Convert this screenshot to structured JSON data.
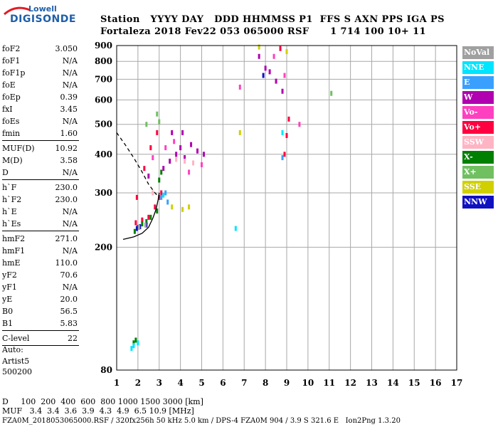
{
  "logo": {
    "top": "Lowell",
    "bottom": "DIGISONDE"
  },
  "header": {
    "line1": "Station   YYYY DAY   DDD HHMMSS P1  FFS S AXN PPS IGA PS",
    "line2": "Fortaleza 2018 Fev22 053 065000 RSF      1 714 100 10+ 11"
  },
  "params_group1": [
    {
      "name": "foF2",
      "value": "3.050"
    },
    {
      "name": "foF1",
      "value": "N/A"
    },
    {
      "name": "foF1p",
      "value": "N/A"
    },
    {
      "name": "foE",
      "value": "N/A"
    },
    {
      "name": "foEp",
      "value": "0.39"
    },
    {
      "name": "fxI",
      "value": "3.45"
    },
    {
      "name": "foEs",
      "value": "N/A"
    },
    {
      "name": "fmin",
      "value": "1.60"
    }
  ],
  "params_group2": [
    {
      "name": "MUF(D)",
      "value": "10.92"
    },
    {
      "name": "M(D)",
      "value": "3.58"
    },
    {
      "name": "D",
      "value": "N/A"
    }
  ],
  "params_group3": [
    {
      "name": "h`F",
      "value": "230.0"
    },
    {
      "name": "h`F2",
      "value": "230.0"
    },
    {
      "name": "h`E",
      "value": "N/A"
    },
    {
      "name": "h`Es",
      "value": "N/A"
    }
  ],
  "params_group4": [
    {
      "name": "hmF2",
      "value": "271.0"
    },
    {
      "name": "hmF1",
      "value": "N/A"
    },
    {
      "name": "hmE",
      "value": "110.0"
    },
    {
      "name": "yF2",
      "value": "70.6"
    },
    {
      "name": "yF1",
      "value": "N/A"
    },
    {
      "name": "yE",
      "value": "20.0"
    },
    {
      "name": "B0",
      "value": "56.5"
    },
    {
      "name": "B1",
      "value": "5.83"
    }
  ],
  "params_group5": [
    {
      "name": "C-level",
      "value": "22"
    }
  ],
  "auto": {
    "line1": "Auto:",
    "line2": "Artist5",
    "line3": "500200"
  },
  "footer": {
    "line1": "D     100  200  400  600  800 1000 1500 3000 [km]",
    "line2": "MUF   3.4  3.4  3.6  3.9  4.3  4.9  6.5 10.9 [MHz]",
    "line3": "FZA0M_2018053065000.RSF / 320fx256h 50 kHz 5.0 km / DPS-4 FZA0M 904 / 3.9 S 321.6 E   Ion2Png 1.3.20"
  },
  "legend": [
    {
      "label": "NoVal",
      "color": "#a0a0a0"
    },
    {
      "label": "NNE",
      "color": "#00e5ff"
    },
    {
      "label": "E",
      "color": "#3aa0ff"
    },
    {
      "label": "W",
      "color": "#b000b0"
    },
    {
      "label": "Vo-",
      "color": "#ff40c0"
    },
    {
      "label": "Vo+",
      "color": "#ff0040"
    },
    {
      "label": "SSW",
      "color": "#ffb4c4"
    },
    {
      "label": "X-",
      "color": "#008000"
    },
    {
      "label": "X+",
      "color": "#70c060"
    },
    {
      "label": "SSE",
      "color": "#d0d000"
    },
    {
      "label": "NNW",
      "color": "#1010c0"
    }
  ],
  "chart_data": {
    "type": "scatter",
    "title": "",
    "xlabel": "",
    "ylabel": "",
    "xlim": [
      1,
      17
    ],
    "ylim": [
      80,
      900
    ],
    "x_ticks": [
      1,
      2,
      3,
      4,
      5,
      6,
      7,
      8,
      9,
      10,
      11,
      12,
      13,
      14,
      15,
      16,
      17
    ],
    "y_ticks": [
      80,
      200,
      300,
      400,
      500,
      600,
      700,
      800,
      900
    ],
    "y_scale": "log",
    "grid": true,
    "legend_position": "right",
    "series": [
      {
        "name": "Vo+",
        "points": [
          [
            1.9,
            240
          ],
          [
            2.2,
            245
          ],
          [
            2.5,
            250
          ],
          [
            2.8,
            270
          ],
          [
            3.0,
            290
          ],
          [
            3.1,
            300
          ],
          [
            1.95,
            290
          ],
          [
            2.3,
            360
          ],
          [
            2.6,
            420
          ],
          [
            2.9,
            470
          ],
          [
            8.9,
            400
          ],
          [
            9.0,
            460
          ],
          [
            9.1,
            520
          ],
          [
            8.7,
            880
          ]
        ]
      },
      {
        "name": "W",
        "points": [
          [
            2.5,
            340
          ],
          [
            3.2,
            360
          ],
          [
            3.5,
            380
          ],
          [
            3.8,
            400
          ],
          [
            4.0,
            420
          ],
          [
            4.2,
            390
          ],
          [
            4.5,
            430
          ],
          [
            4.8,
            410
          ],
          [
            5.1,
            400
          ],
          [
            3.6,
            470
          ],
          [
            4.1,
            470
          ],
          [
            7.7,
            830
          ],
          [
            8.0,
            760
          ],
          [
            8.2,
            740
          ],
          [
            8.5,
            690
          ],
          [
            8.8,
            640
          ]
        ]
      },
      {
        "name": "Vo-",
        "points": [
          [
            2.7,
            390
          ],
          [
            3.3,
            420
          ],
          [
            3.7,
            440
          ],
          [
            4.4,
            350
          ],
          [
            5.0,
            370
          ],
          [
            8.4,
            830
          ],
          [
            8.9,
            720
          ],
          [
            9.6,
            500
          ],
          [
            6.8,
            660
          ]
        ]
      },
      {
        "name": "X-",
        "points": [
          [
            1.85,
            225
          ],
          [
            2.0,
            232
          ],
          [
            2.2,
            238
          ],
          [
            2.4,
            242
          ],
          [
            2.6,
            250
          ],
          [
            2.9,
            262
          ],
          [
            3.0,
            330
          ],
          [
            3.1,
            350
          ],
          [
            1.8,
            98
          ],
          [
            1.9,
            100
          ]
        ]
      },
      {
        "name": "X+",
        "points": [
          [
            2.4,
            500
          ],
          [
            2.9,
            540
          ],
          [
            3.0,
            510
          ],
          [
            11.1,
            630
          ]
        ]
      },
      {
        "name": "NNE",
        "points": [
          [
            1.7,
            94
          ],
          [
            1.8,
            96
          ],
          [
            2.0,
            98
          ],
          [
            3.2,
            295
          ],
          [
            6.6,
            230
          ],
          [
            8.8,
            470
          ]
        ]
      },
      {
        "name": "E",
        "points": [
          [
            3.1,
            290
          ],
          [
            3.3,
            300
          ],
          [
            3.4,
            280
          ],
          [
            8.8,
            390
          ]
        ]
      },
      {
        "name": "SSW",
        "points": [
          [
            3.8,
            385
          ],
          [
            4.2,
            380
          ],
          [
            4.6,
            375
          ],
          [
            2.7,
            300
          ]
        ]
      },
      {
        "name": "SSE",
        "points": [
          [
            3.6,
            270
          ],
          [
            4.1,
            265
          ],
          [
            4.4,
            270
          ],
          [
            6.8,
            470
          ],
          [
            7.7,
            890
          ],
          [
            9.0,
            860
          ]
        ]
      },
      {
        "name": "NNW",
        "points": [
          [
            1.95,
            230
          ],
          [
            2.1,
            233
          ],
          [
            2.4,
            236
          ],
          [
            7.9,
            720
          ]
        ]
      },
      {
        "name": "NoVal",
        "points": [
          [
            2.05,
            232
          ],
          [
            2.35,
            236
          ]
        ]
      }
    ],
    "curves": [
      {
        "name": "profile",
        "style": "solid",
        "points": [
          [
            1.3,
            212
          ],
          [
            1.8,
            216
          ],
          [
            2.2,
            222
          ],
          [
            2.5,
            232
          ],
          [
            2.7,
            248
          ],
          [
            2.85,
            265
          ],
          [
            2.95,
            285
          ],
          [
            3.0,
            300
          ]
        ]
      },
      {
        "name": "extrapolation",
        "style": "dashed",
        "points": [
          [
            1.0,
            470
          ],
          [
            1.4,
            430
          ],
          [
            1.8,
            390
          ],
          [
            2.2,
            350
          ],
          [
            2.5,
            320
          ],
          [
            2.8,
            300
          ],
          [
            3.0,
            290
          ]
        ]
      }
    ]
  }
}
